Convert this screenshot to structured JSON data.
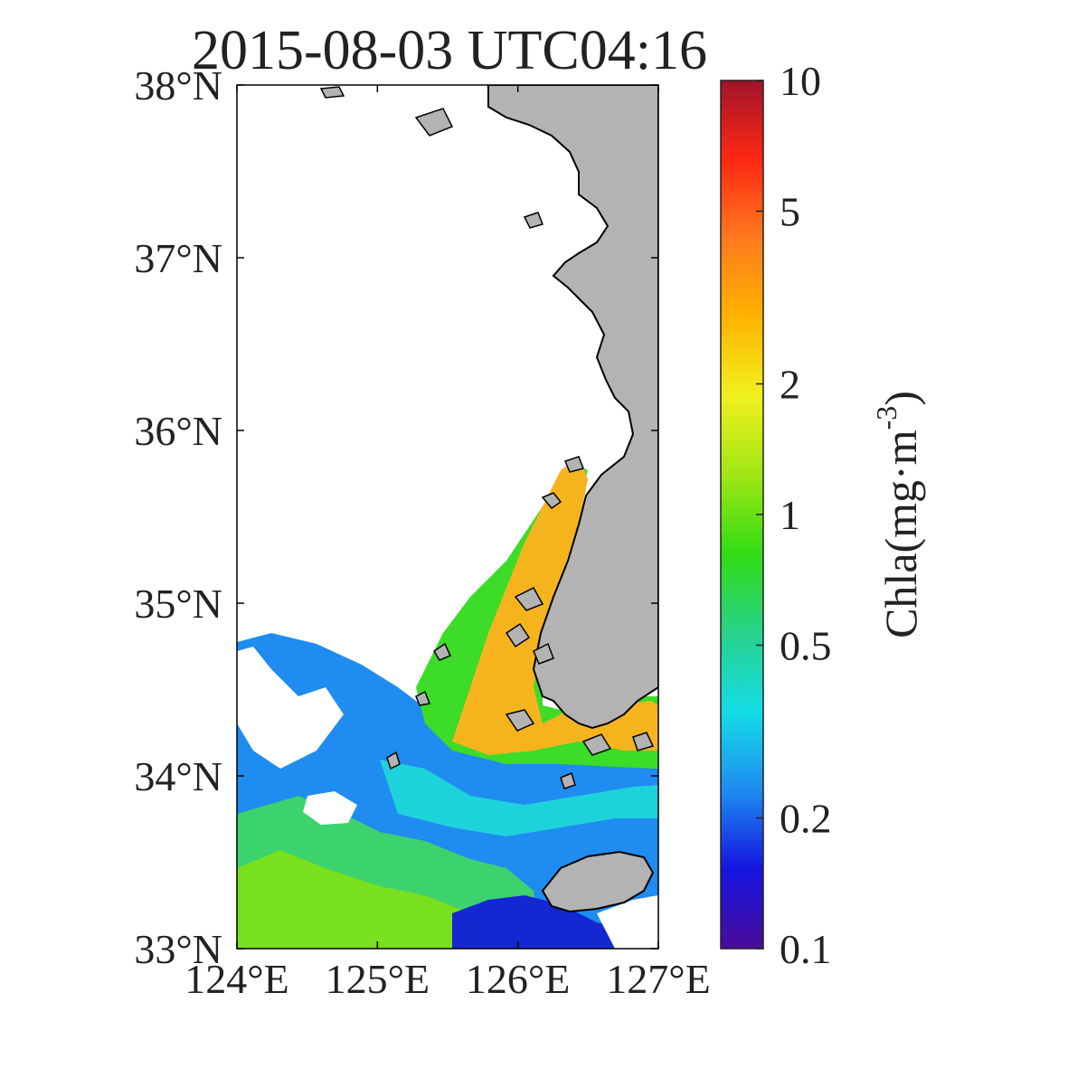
{
  "title": "2015-08-03 UTC04:16",
  "map": {
    "lat_ticks": [
      {
        "value": 38,
        "label": "38°N"
      },
      {
        "value": 37,
        "label": "37°N"
      },
      {
        "value": 36,
        "label": "36°N"
      },
      {
        "value": 35,
        "label": "35°N"
      },
      {
        "value": 34,
        "label": "34°N"
      },
      {
        "value": 33,
        "label": "33°N"
      }
    ],
    "lon_ticks": [
      {
        "value": 124,
        "label": "124°E"
      },
      {
        "value": 125,
        "label": "125°E"
      },
      {
        "value": 126,
        "label": "126°E"
      },
      {
        "value": 127,
        "label": "127°E"
      }
    ],
    "extent": {
      "lon": [
        124,
        127
      ],
      "lat": [
        33,
        38
      ]
    },
    "colors": {
      "land": "#b3b3b3",
      "coast": "#000000",
      "no_data": "#ffffff"
    }
  },
  "colorbar": {
    "label_main": "Chla(mg·m",
    "label_exp": "-3",
    "label_close": ")",
    "scale": "log",
    "range": [
      0.1,
      10
    ],
    "ticks": [
      {
        "value": 10,
        "label": "10"
      },
      {
        "value": 5,
        "label": "5"
      },
      {
        "value": 2,
        "label": "2"
      },
      {
        "value": 1,
        "label": "1"
      },
      {
        "value": 0.5,
        "label": "0.5"
      },
      {
        "value": 0.2,
        "label": "0.2"
      },
      {
        "value": 0.1,
        "label": "0.1"
      }
    ],
    "colormap": [
      "#4b0c9a",
      "#1414e0",
      "#1e8cf0",
      "#14dce6",
      "#28d28c",
      "#32dc14",
      "#a0e614",
      "#f0f01e",
      "#ffb400",
      "#ff7a1e",
      "#ff2814",
      "#a0142a"
    ]
  }
}
